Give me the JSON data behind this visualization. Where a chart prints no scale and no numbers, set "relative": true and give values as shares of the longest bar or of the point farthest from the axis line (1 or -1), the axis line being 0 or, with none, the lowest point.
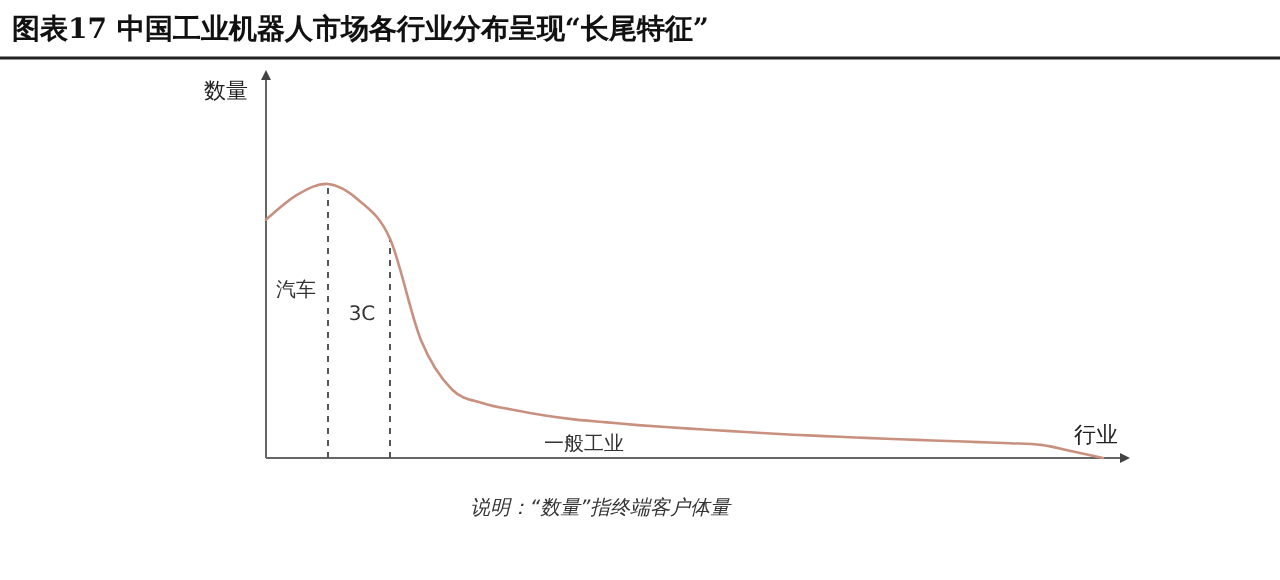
{
  "chart_data": {
    "type": "line",
    "title": "图表17 中国工业机器人市场各行业分布呈现“长尾特征”",
    "xlabel": "行业",
    "ylabel": "数量",
    "relative": true,
    "marker": "none",
    "line_style": "solid",
    "categories": [
      null,
      null,
      null,
      null,
      null,
      null,
      null,
      null,
      null,
      null,
      null,
      null,
      null,
      null,
      null,
      null,
      null,
      null,
      null,
      null,
      null,
      null,
      null,
      null,
      null,
      null,
      null,
      null
    ],
    "series": [
      {
        "color": "#c8907f",
        "values": [
          0.87,
          0.96,
          1.0,
          0.94,
          0.8,
          0.43,
          0.25,
          0.2,
          0.175,
          0.155,
          0.14,
          0.13,
          0.12,
          0.112,
          0.105,
          0.098,
          0.091,
          0.085,
          0.08,
          0.075,
          0.07,
          0.066,
          0.062,
          0.058,
          0.054,
          0.048,
          0.025,
          0
        ]
      }
    ],
    "annotations": [
      "汽车",
      "3C",
      "一般工业",
      "说明：“数量”指终端客户体量"
    ]
  }
}
